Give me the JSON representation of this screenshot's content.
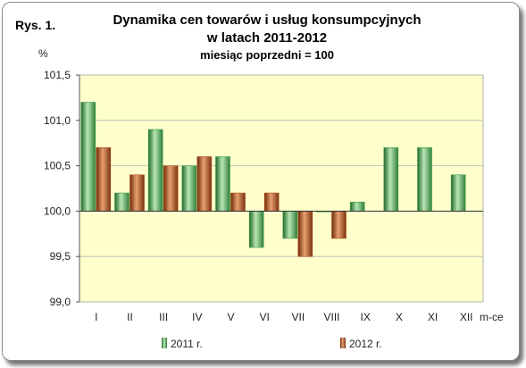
{
  "figure_label": "Rys. 1.",
  "chart_data": {
    "type": "bar",
    "title": "Dynamika cen towarów i usług konsumpcyjnych",
    "title_line2": "w latach 2011-2012",
    "subtitle": "miesiąc poprzedni = 100",
    "ylabel": "%",
    "xlabel": "m-ce",
    "categories": [
      "I",
      "II",
      "III",
      "IV",
      "V",
      "VI",
      "VII",
      "VIII",
      "IX",
      "X",
      "XI",
      "XII"
    ],
    "baseline": 100.0,
    "ylim": [
      99.0,
      101.5
    ],
    "yticks": [
      "99,0",
      "99,5",
      "100,0",
      "100,5",
      "101,0",
      "101,5"
    ],
    "ytick_values": [
      99.0,
      99.5,
      100.0,
      100.5,
      101.0,
      101.5
    ],
    "grid": true,
    "legend_position": "bottom",
    "plot_background": "#ffffcc",
    "series": [
      {
        "name": "2011 r.",
        "color": "#3d9a47",
        "values": [
          101.2,
          100.2,
          100.9,
          100.5,
          100.6,
          99.6,
          99.7,
          100.0,
          100.1,
          100.7,
          100.7,
          100.4
        ]
      },
      {
        "name": "2012 r.",
        "color": "#a94a15",
        "values": [
          100.7,
          100.4,
          100.5,
          100.6,
          100.2,
          100.2,
          99.5,
          99.7,
          null,
          null,
          null,
          null
        ]
      }
    ]
  }
}
